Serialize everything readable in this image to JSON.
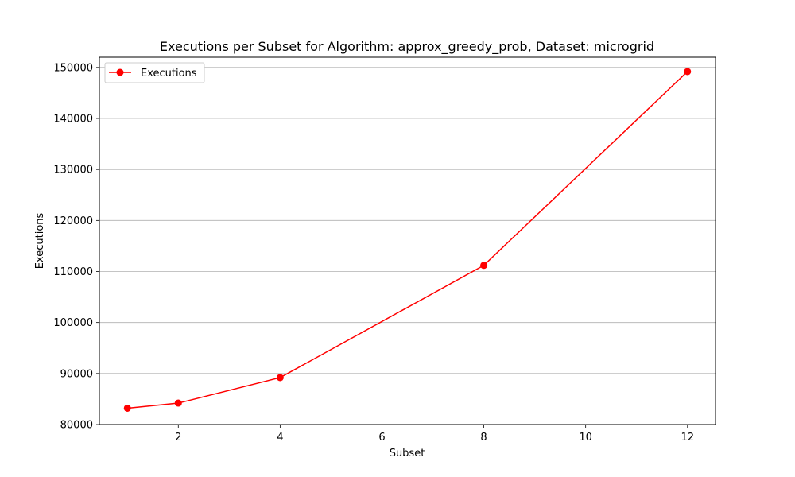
{
  "chart_data": {
    "type": "line",
    "title": "Executions per Subset for Algorithm: approx_greedy_prob, Dataset: microgrid",
    "xlabel": "Subset",
    "ylabel": "Executions",
    "x": [
      1,
      2,
      4,
      8,
      12
    ],
    "series": [
      {
        "name": "Executions",
        "values": [
          83200,
          84200,
          89200,
          111200,
          149200
        ],
        "color": "#ff0000",
        "marker": "circle"
      }
    ],
    "xlim": [
      0.45,
      12.55
    ],
    "ylim": [
      80000,
      152000
    ],
    "xticks": [
      2,
      4,
      6,
      8,
      10,
      12
    ],
    "yticks": [
      80000,
      90000,
      100000,
      110000,
      120000,
      130000,
      140000,
      150000
    ],
    "grid": "y",
    "legend_position": "top-left"
  }
}
